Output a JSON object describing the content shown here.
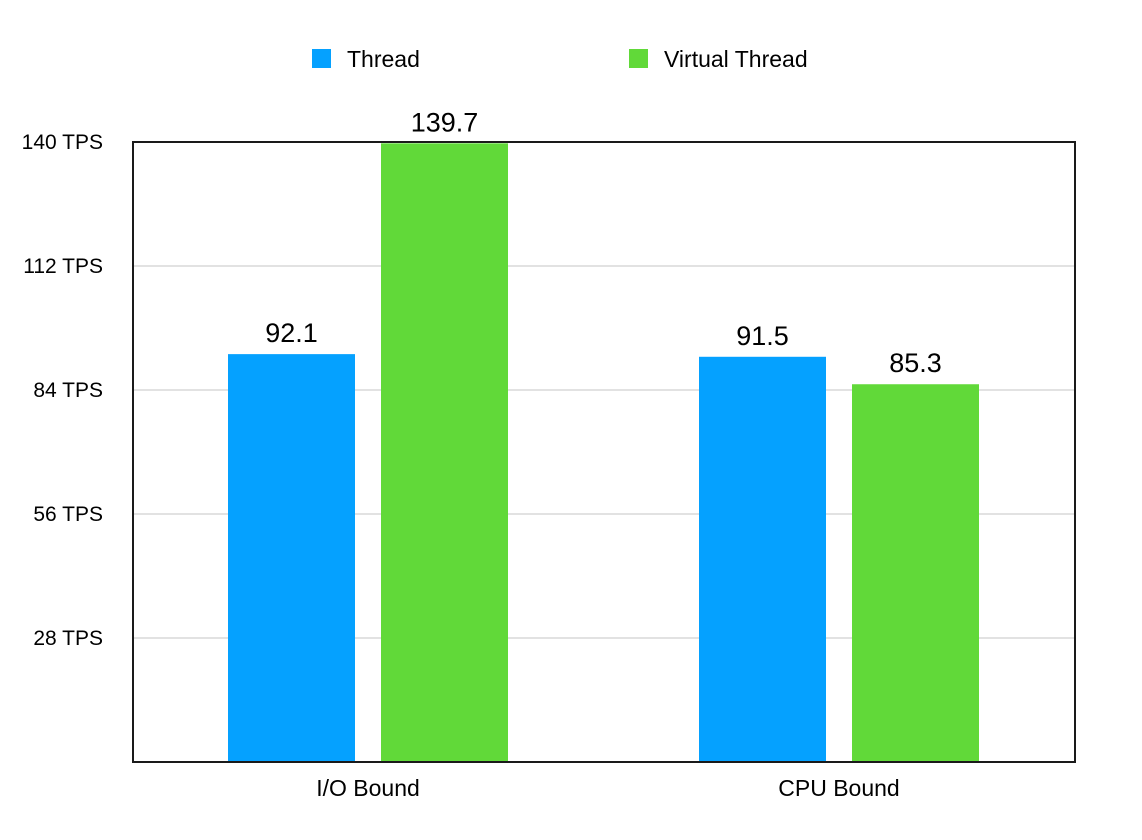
{
  "chart_data": {
    "type": "bar",
    "categories": [
      "I/O Bound",
      "CPU Bound"
    ],
    "series": [
      {
        "name": "Thread",
        "color": "#05a1ff",
        "values": [
          92.1,
          91.5
        ],
        "labels": [
          "92.1",
          "91.5"
        ]
      },
      {
        "name": "Virtual Thread",
        "color": "#61d939",
        "values": [
          139.7,
          85.3
        ],
        "labels": [
          "139.7",
          "85.3"
        ]
      }
    ],
    "yticks": [
      28,
      56,
      84,
      112,
      140
    ],
    "ytick_labels": [
      "28 TPS",
      "56 TPS",
      "84 TPS",
      "112 TPS",
      "140 TPS"
    ],
    "ylim": [
      0,
      140
    ],
    "grid": true,
    "legend": "top-center",
    "title": "",
    "xlabel": "",
    "ylabel": ""
  }
}
